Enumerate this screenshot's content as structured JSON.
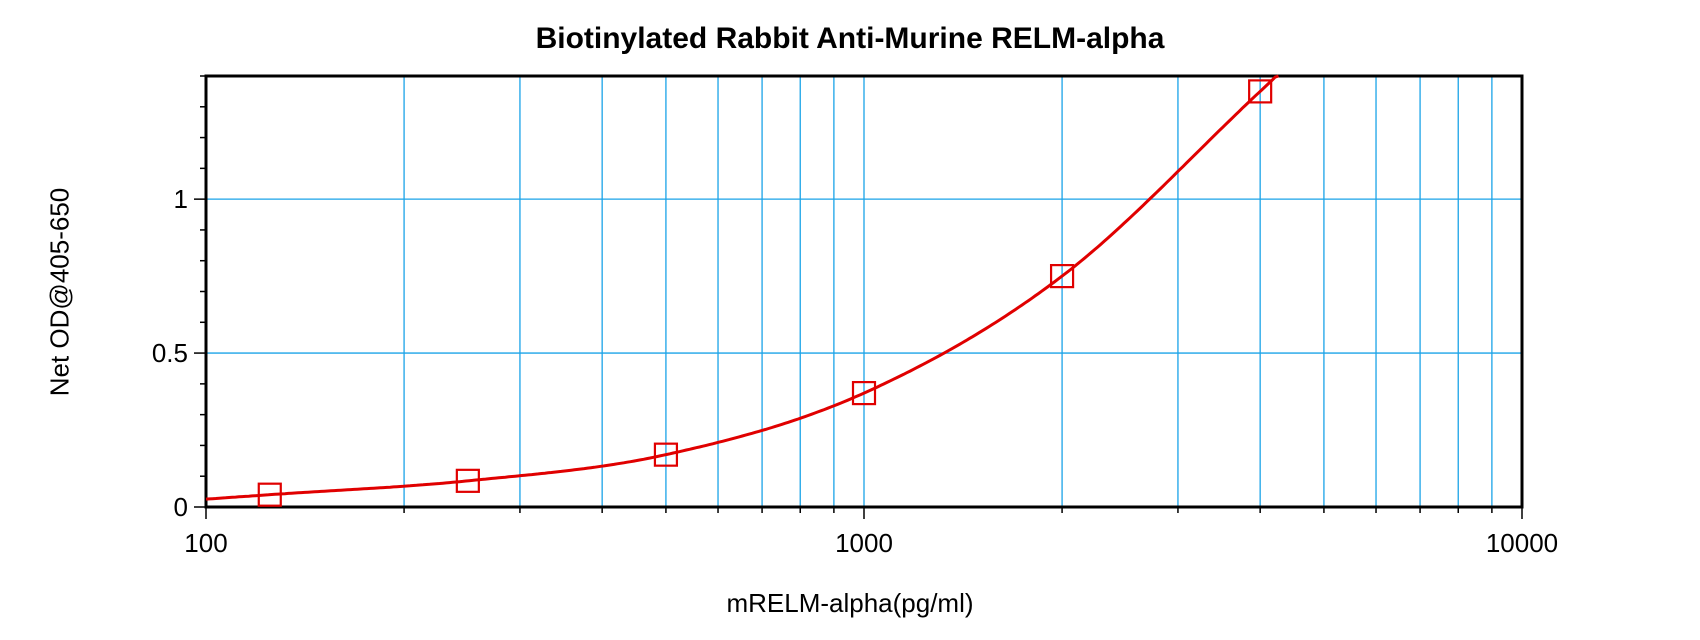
{
  "chart_data": {
    "type": "scatter",
    "title": "Biotinylated Rabbit Anti-Murine RELM-alpha",
    "xlabel": "mRELM-alpha(pg/ml)",
    "ylabel": "Net OD@405-650",
    "x_scale": "log",
    "xlim": [
      100,
      10000
    ],
    "ylim": [
      0,
      1.4
    ],
    "x_ticks": [
      100,
      1000,
      10000
    ],
    "x_tick_labels": [
      "100",
      "1000",
      "10000"
    ],
    "y_ticks": [
      0,
      0.5,
      1
    ],
    "y_tick_labels": [
      "0",
      "0.5",
      "1"
    ],
    "grid": true,
    "series": [
      {
        "x": [
          125,
          250,
          500,
          1000,
          2000,
          4000
        ],
        "y": [
          0.04,
          0.085,
          0.17,
          0.37,
          0.75,
          1.35
        ],
        "marker": "square",
        "fitted_curve": true
      }
    ],
    "colors": {
      "series": "#e00000",
      "grid": "#1aa3e8",
      "axes": "#000000"
    }
  }
}
